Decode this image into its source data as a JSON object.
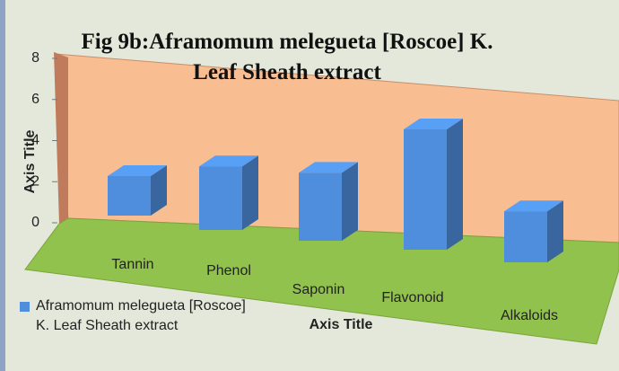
{
  "chart_data": {
    "type": "bar3d",
    "title": "Fig 9b:Aframomum melegueta [Roscoe] K. Leaf Sheath extract",
    "x_label": "Axis Title",
    "y_label": "Axis Title",
    "categories": [
      "Tannin",
      "Phenol",
      "Saponin",
      "Flavonoid",
      "Alkaloids"
    ],
    "series": [
      {
        "name": "Aframomum melegueta [Roscoe] K. Leaf Sheath extract",
        "color": "#4f8edc",
        "values": [
          2,
          3,
          3,
          5,
          2
        ]
      }
    ],
    "ylim": [
      0,
      8
    ],
    "yticks": [
      0,
      2,
      4,
      6,
      8
    ],
    "legend": "bottom-left"
  }
}
